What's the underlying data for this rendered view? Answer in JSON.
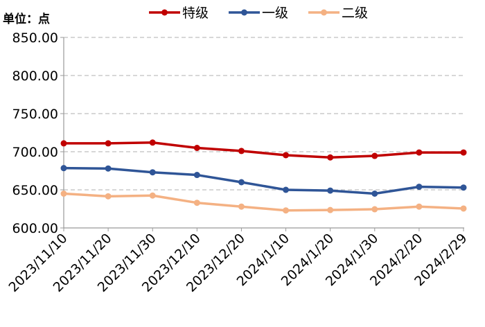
{
  "chart_data": {
    "type": "line",
    "unit_label": "单位：点",
    "categories": [
      "2023/11/10",
      "2023/11/20",
      "2023/11/30",
      "2023/12/10",
      "2023/12/20",
      "2024/1/10",
      "2024/1/20",
      "2024/1/30",
      "2024/2/20",
      "2024/2/29"
    ],
    "series": [
      {
        "name": "特级",
        "color": "#C00000",
        "values": [
          711,
          711,
          712,
          705,
          701,
          695.5,
          692.5,
          694.5,
          699,
          699
        ]
      },
      {
        "name": "一级",
        "color": "#2F5597",
        "values": [
          678.5,
          678,
          673,
          669.5,
          660,
          650,
          649,
          645,
          654,
          653
        ]
      },
      {
        "name": "二级",
        "color": "#F4B183",
        "values": [
          645,
          641.5,
          642.5,
          633,
          628,
          623,
          623.5,
          624.5,
          628,
          625.5
        ]
      }
    ],
    "ylim": [
      600,
      850
    ],
    "yticks": [
      "600.00",
      "650.00",
      "700.00",
      "750.00",
      "800.00",
      "850.00"
    ],
    "grid": true,
    "legend": "top"
  }
}
